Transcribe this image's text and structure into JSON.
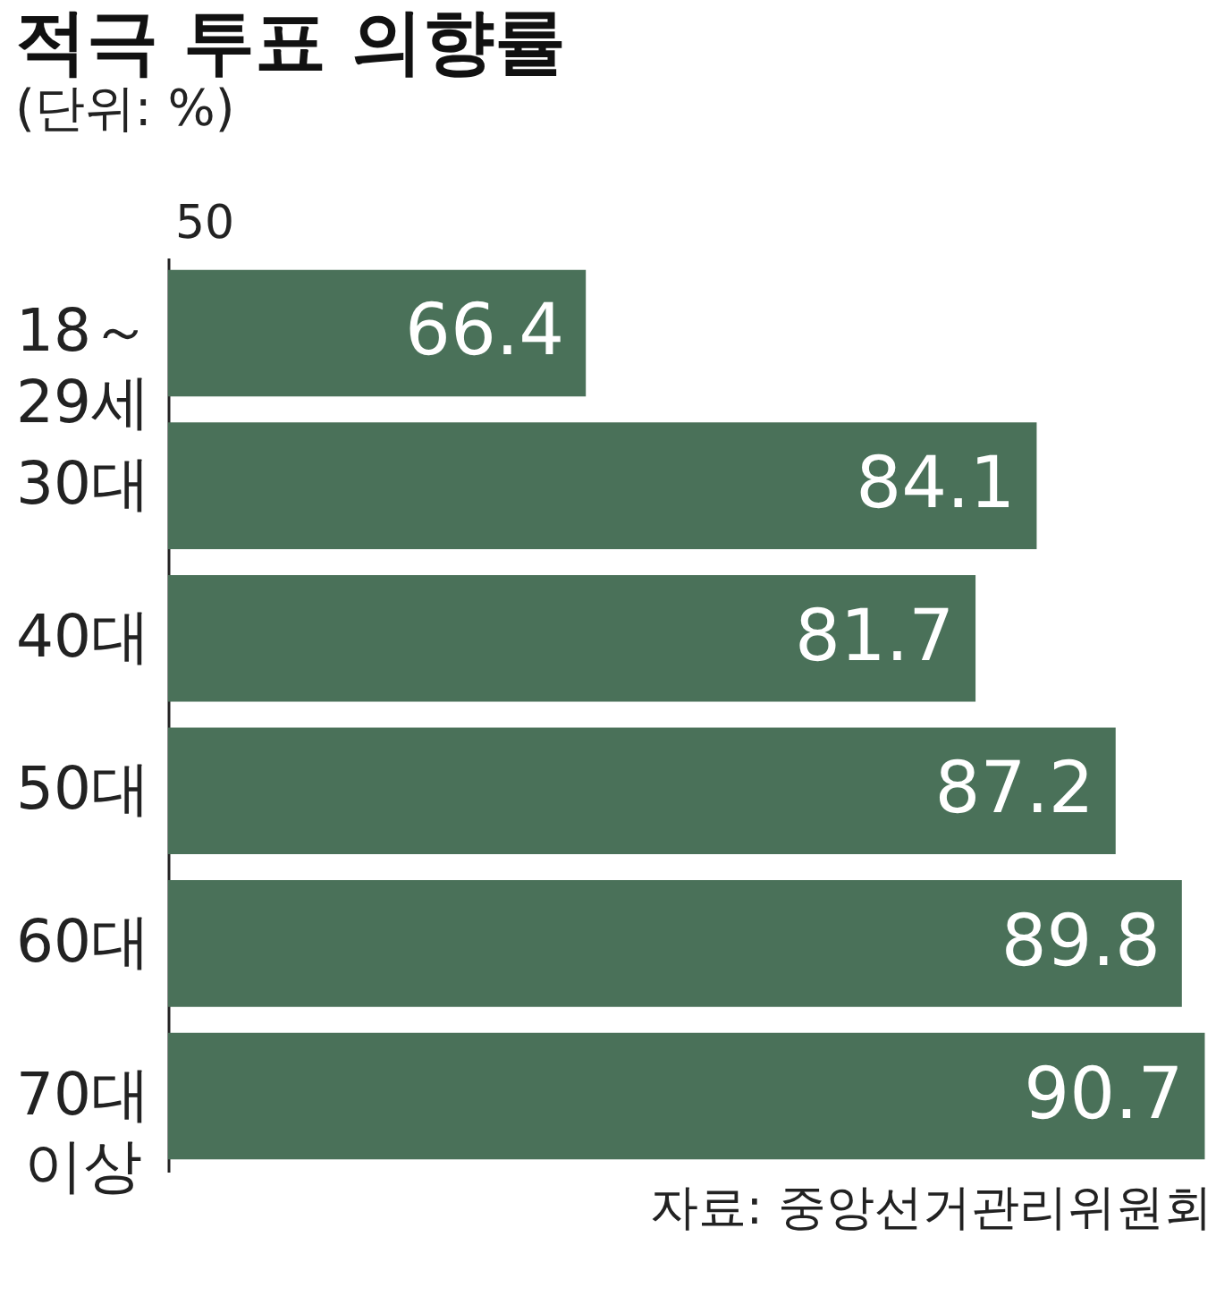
{
  "chart_data": {
    "type": "bar",
    "orientation": "horizontal",
    "title": "적극 투표 의향률",
    "subtitle": "(단위: %)",
    "categories": [
      "18～\n29세",
      "30대",
      "40대",
      "50대",
      "60대",
      "70대\n이상"
    ],
    "values": [
      66.4,
      84.1,
      81.7,
      87.2,
      89.8,
      90.7
    ],
    "color": "#4a7159",
    "xlim": [
      50,
      91
    ],
    "data_labels": true,
    "grid": false,
    "annotations": [
      "50",
      "자료: 중앙선거관리위원회"
    ]
  }
}
